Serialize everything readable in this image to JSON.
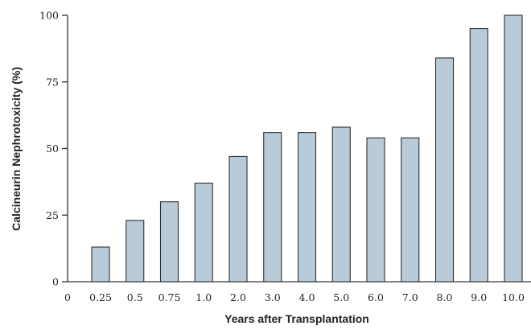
{
  "chart_data": {
    "type": "bar",
    "xlabel": "Years after Transplantation",
    "ylabel": "Calcineurin Nephrotoxicity (%)",
    "x_origin_label": "0",
    "categories": [
      "0.25",
      "0.5",
      "0.75",
      "1.0",
      "2.0",
      "3.0",
      "4.0",
      "5.0",
      "6.0",
      "7.0",
      "8.0",
      "9.0",
      "10.0"
    ],
    "values": [
      13,
      23,
      30,
      37,
      47,
      56,
      56,
      58,
      54,
      54,
      84,
      95,
      100
    ],
    "ylim": [
      0,
      100
    ],
    "yticks": [
      0,
      25,
      50,
      75,
      100
    ],
    "ytick_labels": [
      "0",
      "25",
      "50",
      "75",
      "100"
    ],
    "grid": false,
    "bar_color": "#b9cbd8",
    "bar_edge_color": "#2f2f2f"
  }
}
